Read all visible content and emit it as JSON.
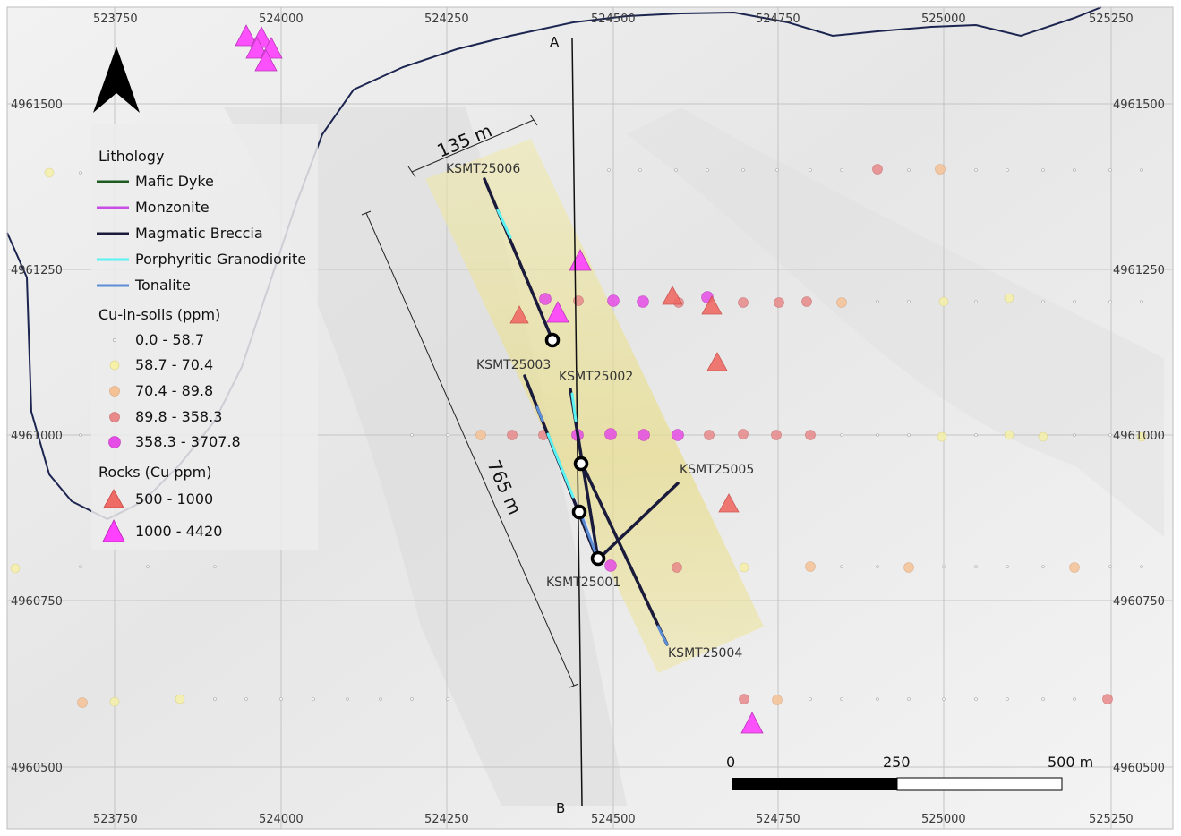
{
  "map": {
    "x_ticks": [
      "523750",
      "524000",
      "524250",
      "524500",
      "524750",
      "525000",
      "525250"
    ],
    "y_ticks": [
      "4961500",
      "4961250",
      "4961000",
      "4960750",
      "4960500"
    ],
    "section": {
      "start_label": "A",
      "end_label": "B"
    },
    "dimensions": {
      "width_label": "135 m",
      "length_label": "765 m"
    },
    "drillholes": [
      "KSMT25006",
      "KSMT25003",
      "KSMT25002",
      "KSMT25005",
      "KSMT25001",
      "KSMT25004"
    ],
    "north_arrow": "north-arrow-icon"
  },
  "legend": {
    "lithology_title": "Lithology",
    "lithology": [
      {
        "label": "Mafic Dyke",
        "color": "#1f5a1f"
      },
      {
        "label": "Monzonite",
        "color": "#c94ce6"
      },
      {
        "label": "Magmatic Breccia",
        "color": "#1a1a3a"
      },
      {
        "label": "Porphyritic Granodiorite",
        "color": "#5cf2f2"
      },
      {
        "label": "Tonalite",
        "color": "#5b8ed6"
      }
    ],
    "soils_title": "Cu-in-soils (ppm)",
    "soils": [
      {
        "label": "0.0 - 58.7",
        "color": "#ffffff"
      },
      {
        "label": "58.7 - 70.4",
        "color": "#f6f0a8"
      },
      {
        "label": "70.4 - 89.8",
        "color": "#f5c296"
      },
      {
        "label": "89.8 - 358.3",
        "color": "#e88a8a"
      },
      {
        "label": "358.3 - 3707.8",
        "color": "#e64ce6"
      }
    ],
    "rocks_title": "Rocks (Cu ppm)",
    "rocks": [
      {
        "label": "500 - 1000",
        "color": "#ef6b66"
      },
      {
        "label": "1000 - 4420",
        "color": "#ff40ff"
      }
    ]
  },
  "scale_bar": {
    "labels": [
      "0",
      "250",
      "500 m"
    ]
  }
}
